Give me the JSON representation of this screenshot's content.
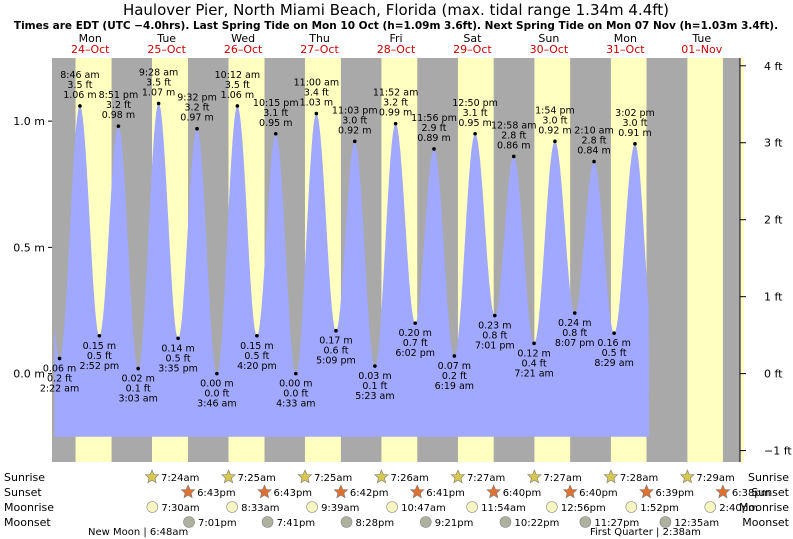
{
  "chart_data": {
    "type": "area",
    "title": "Haulover Pier, North Miami Beach, Florida (max. tidal range 1.34m 4.4ft)",
    "subtitle": "Times are EDT (UTC −4.0hrs). Last Spring Tide on Mon 10 Oct (h=1.09m 3.6ft). Next Spring Tide on Mon 07 Nov (h=1.03m 3.4ft).",
    "x_unit": "hours from Mon 24-Oct 00:00",
    "xlim": [
      0,
      216
    ],
    "ylim": [
      -0.35,
      1.25
    ],
    "left_axis": {
      "label": "m",
      "ticks": [
        {
          "v": 1.0,
          "label": "1.0 m"
        },
        {
          "v": 0.5,
          "label": "0.5 m"
        },
        {
          "v": 0.0,
          "label": "0.0 m"
        }
      ]
    },
    "right_axis": {
      "label": "ft",
      "ticks": [
        {
          "v": 1.2192,
          "label": "4 ft"
        },
        {
          "v": 0.9144,
          "label": "3 ft"
        },
        {
          "v": 0.6096,
          "label": "2 ft"
        },
        {
          "v": 0.3048,
          "label": "1 ft"
        },
        {
          "v": 0.0,
          "label": "0 ft"
        },
        {
          "v": -0.3048,
          "label": "−1 ft"
        }
      ]
    },
    "days": [
      {
        "dow": "Mon",
        "date": "24–Oct",
        "sunrise_h": 7.4,
        "sunset_h": 18.7
      },
      {
        "dow": "Tue",
        "date": "25–Oct",
        "sunrise_h": 7.4,
        "sunset_h": 18.7
      },
      {
        "dow": "Wed",
        "date": "26–Oct",
        "sunrise_h": 7.42,
        "sunset_h": 18.72
      },
      {
        "dow": "Thu",
        "date": "27–Oct",
        "sunrise_h": 7.42,
        "sunset_h": 18.7
      },
      {
        "dow": "Fri",
        "date": "28–Oct",
        "sunrise_h": 7.43,
        "sunset_h": 18.68
      },
      {
        "dow": "Sat",
        "date": "29–Oct",
        "sunrise_h": 7.45,
        "sunset_h": 18.67
      },
      {
        "dow": "Sun",
        "date": "30–Oct",
        "sunrise_h": 7.45,
        "sunset_h": 18.67
      },
      {
        "dow": "Mon",
        "date": "31–Oct",
        "sunrise_h": 7.47,
        "sunset_h": 18.65
      },
      {
        "dow": "Tue",
        "date": "01–Nov",
        "sunrise_h": 7.48,
        "sunset_h": 18.63
      }
    ],
    "tides": [
      {
        "t": 2.37,
        "m": 0.06,
        "time": "2:22 am",
        "height_m": "0.06 m",
        "height_ft": "0.2 ft",
        "type": "low"
      },
      {
        "t": 8.77,
        "m": 1.06,
        "time": "8:46 am",
        "height_m": "1.06 m",
        "height_ft": "3.5 ft",
        "type": "high"
      },
      {
        "t": 14.87,
        "m": 0.15,
        "time": "2:52 pm",
        "height_m": "0.15 m",
        "height_ft": "0.5 ft",
        "type": "low"
      },
      {
        "t": 20.85,
        "m": 0.98,
        "time": "8:51 pm",
        "height_m": "0.98 m",
        "height_ft": "3.2 ft",
        "type": "high"
      },
      {
        "t": 27.05,
        "m": 0.02,
        "time": "3:03 am",
        "height_m": "0.02 m",
        "height_ft": "0.1 ft",
        "type": "low"
      },
      {
        "t": 33.47,
        "m": 1.07,
        "time": "9:28 am",
        "height_m": "1.07 m",
        "height_ft": "3.5 ft",
        "type": "high"
      },
      {
        "t": 39.58,
        "m": 0.14,
        "time": "3:35 pm",
        "height_m": "0.14 m",
        "height_ft": "0.5 ft",
        "type": "low"
      },
      {
        "t": 45.53,
        "m": 0.97,
        "time": "9:32 pm",
        "height_m": "0.97 m",
        "height_ft": "3.2 ft",
        "type": "high"
      },
      {
        "t": 51.77,
        "m": 0.0,
        "time": "3:46 am",
        "height_m": "0.00 m",
        "height_ft": "0.0 ft",
        "type": "low"
      },
      {
        "t": 58.2,
        "m": 1.06,
        "time": "10:12 am",
        "height_m": "1.06 m",
        "height_ft": "3.5 ft",
        "type": "high"
      },
      {
        "t": 64.33,
        "m": 0.15,
        "time": "4:20 pm",
        "height_m": "0.15 m",
        "height_ft": "0.5 ft",
        "type": "low"
      },
      {
        "t": 70.25,
        "m": 0.95,
        "time": "10:15 pm",
        "height_m": "0.95 m",
        "height_ft": "3.1 ft",
        "type": "high"
      },
      {
        "t": 76.55,
        "m": 0.0,
        "time": "4:33 am",
        "height_m": "0.00 m",
        "height_ft": "0.0 ft",
        "type": "low"
      },
      {
        "t": 83.0,
        "m": 1.03,
        "time": "11:00 am",
        "height_m": "1.03 m",
        "height_ft": "3.4 ft",
        "type": "high"
      },
      {
        "t": 89.15,
        "m": 0.17,
        "time": "5:09 pm",
        "height_m": "0.17 m",
        "height_ft": "0.6 ft",
        "type": "low"
      },
      {
        "t": 95.05,
        "m": 0.92,
        "time": "11:03 pm",
        "height_m": "0.92 m",
        "height_ft": "3.0 ft",
        "type": "high"
      },
      {
        "t": 101.38,
        "m": 0.03,
        "time": "5:23 am",
        "height_m": "0.03 m",
        "height_ft": "0.1 ft",
        "type": "low"
      },
      {
        "t": 107.87,
        "m": 0.99,
        "time": "11:52 am",
        "height_m": "0.99 m",
        "height_ft": "3.2 ft",
        "type": "high"
      },
      {
        "t": 114.03,
        "m": 0.2,
        "time": "6:02 pm",
        "height_m": "0.20 m",
        "height_ft": "0.7 ft",
        "type": "low"
      },
      {
        "t": 119.93,
        "m": 0.89,
        "time": "11:56 pm",
        "height_m": "0.89 m",
        "height_ft": "2.9 ft",
        "type": "high"
      },
      {
        "t": 126.32,
        "m": 0.07,
        "time": "6:19 am",
        "height_m": "0.07 m",
        "height_ft": "0.2 ft",
        "type": "low"
      },
      {
        "t": 132.83,
        "m": 0.95,
        "time": "12:50 pm",
        "height_m": "0.95 m",
        "height_ft": "3.1 ft",
        "type": "high"
      },
      {
        "t": 139.02,
        "m": 0.23,
        "time": "7:01 pm",
        "height_m": "0.23 m",
        "height_ft": "0.8 ft",
        "type": "low"
      },
      {
        "t": 144.97,
        "m": 0.86,
        "time": "12:58 am",
        "height_m": "0.86 m",
        "height_ft": "2.8 ft",
        "type": "high"
      },
      {
        "t": 151.35,
        "m": 0.12,
        "time": "7:21 am",
        "height_m": "0.12 m",
        "height_ft": "0.4 ft",
        "type": "low"
      },
      {
        "t": 157.9,
        "m": 0.92,
        "time": "1:54 pm",
        "height_m": "0.92 m",
        "height_ft": "3.0 ft",
        "type": "high"
      },
      {
        "t": 164.12,
        "m": 0.24,
        "time": "8:07 pm",
        "height_m": "0.24 m",
        "height_ft": "0.8 ft",
        "type": "low"
      },
      {
        "t": 170.17,
        "m": 0.84,
        "time": "2:10 am",
        "height_m": "0.84 m",
        "height_ft": "2.8 ft",
        "type": "high"
      },
      {
        "t": 176.48,
        "m": 0.16,
        "time": "8:29 am",
        "height_m": "0.16 m",
        "height_ft": "0.5 ft",
        "type": "low"
      },
      {
        "t": 183.03,
        "m": 0.91,
        "time": "3:02 pm",
        "height_m": "0.91 m",
        "height_ft": "3.0 ft",
        "type": "high"
      }
    ],
    "sunrise": [
      {
        "t": 31.4,
        "label": "7:24am"
      },
      {
        "t": 55.42,
        "label": "7:25am"
      },
      {
        "t": 79.42,
        "label": "7:25am"
      },
      {
        "t": 103.43,
        "label": "7:26am"
      },
      {
        "t": 127.45,
        "label": "7:27am"
      },
      {
        "t": 151.45,
        "label": "7:27am"
      },
      {
        "t": 175.47,
        "label": "7:28am"
      },
      {
        "t": 199.48,
        "label": "7:29am"
      }
    ],
    "sunset": [
      {
        "t": 42.72,
        "label": "6:43pm"
      },
      {
        "t": 66.72,
        "label": "6:43pm"
      },
      {
        "t": 90.7,
        "label": "6:42pm"
      },
      {
        "t": 114.68,
        "label": "6:41pm"
      },
      {
        "t": 138.67,
        "label": "6:40pm"
      },
      {
        "t": 162.67,
        "label": "6:40pm"
      },
      {
        "t": 186.65,
        "label": "6:39pm"
      },
      {
        "t": 210.63,
        "label": "6:38pm"
      }
    ],
    "moonrise": [
      {
        "t": 31.5,
        "label": "7:30am"
      },
      {
        "t": 56.55,
        "label": "8:33am"
      },
      {
        "t": 81.65,
        "label": "9:39am"
      },
      {
        "t": 106.78,
        "label": "10:47am"
      },
      {
        "t": 131.9,
        "label": "11:54am"
      },
      {
        "t": 156.93,
        "label": "12:56pm"
      },
      {
        "t": 181.87,
        "label": "1:52pm"
      },
      {
        "t": 206.67,
        "label": "2:40pm"
      }
    ],
    "moonset": [
      {
        "t": 43.02,
        "label": "7:01pm"
      },
      {
        "t": 67.68,
        "label": "7:41pm"
      },
      {
        "t": 92.47,
        "label": "8:28pm"
      },
      {
        "t": 117.35,
        "label": "9:21pm"
      },
      {
        "t": 142.37,
        "label": "10:22pm"
      },
      {
        "t": 167.45,
        "label": "11:27pm"
      },
      {
        "t": 192.58,
        "label": "12:35am"
      }
    ],
    "row_labels": {
      "sunrise": "Sunrise",
      "sunset": "Sunset",
      "moonrise": "Moonrise",
      "moonset": "Moonset"
    },
    "moon_phases": {
      "new_moon": "New Moon | 6:48am",
      "first_quarter": "First Quarter | 2:38am"
    }
  },
  "colors": {
    "night": "#a9a9a9",
    "day": "#ffffc0",
    "water": "#a0a8ff",
    "weekday": "#000000",
    "date": "#cc0000",
    "sun_rise": "#d8c850",
    "sun_set": "#e07030",
    "moon_rise": "#f7f5c0",
    "moon_set": "#b0b0a0"
  }
}
